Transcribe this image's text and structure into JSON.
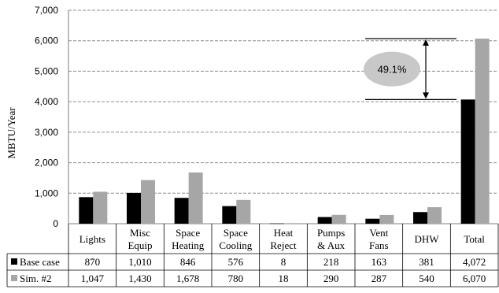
{
  "chart_data": {
    "type": "bar",
    "ylabel": "MBTU/Year",
    "ylim": [
      0,
      7000
    ],
    "yticks": [
      "0",
      "1,000",
      "2,000",
      "3,000",
      "4,000",
      "5,000",
      "6,000",
      "7,000"
    ],
    "ytick_values": [
      0,
      1000,
      2000,
      3000,
      4000,
      5000,
      6000,
      7000
    ],
    "grid": true,
    "categories": [
      [
        "Lights"
      ],
      [
        "Misc",
        "Equip"
      ],
      [
        "Space",
        "Heating"
      ],
      [
        "Space",
        "Cooling"
      ],
      [
        "Heat",
        "Reject"
      ],
      [
        "Pumps",
        "& Aux"
      ],
      [
        "Vent",
        "Fans"
      ],
      [
        "DHW"
      ],
      [
        "Total"
      ]
    ],
    "series": [
      {
        "name": "Base case",
        "color": "#000000",
        "values": [
          870,
          1010,
          846,
          576,
          8,
          218,
          163,
          381,
          4072
        ],
        "labels": [
          "870",
          "1,010",
          "846",
          "576",
          "8",
          "218",
          "163",
          "381",
          "4,072"
        ]
      },
      {
        "name": "Sim. #2",
        "color": "#a6a6a6",
        "values": [
          1047,
          1430,
          1678,
          780,
          18,
          290,
          287,
          540,
          6070
        ],
        "labels": [
          "1,047",
          "1,430",
          "1,678",
          "780",
          "18",
          "290",
          "287",
          "540",
          "6,070"
        ]
      }
    ],
    "annotation": {
      "text": "49.1%"
    }
  }
}
